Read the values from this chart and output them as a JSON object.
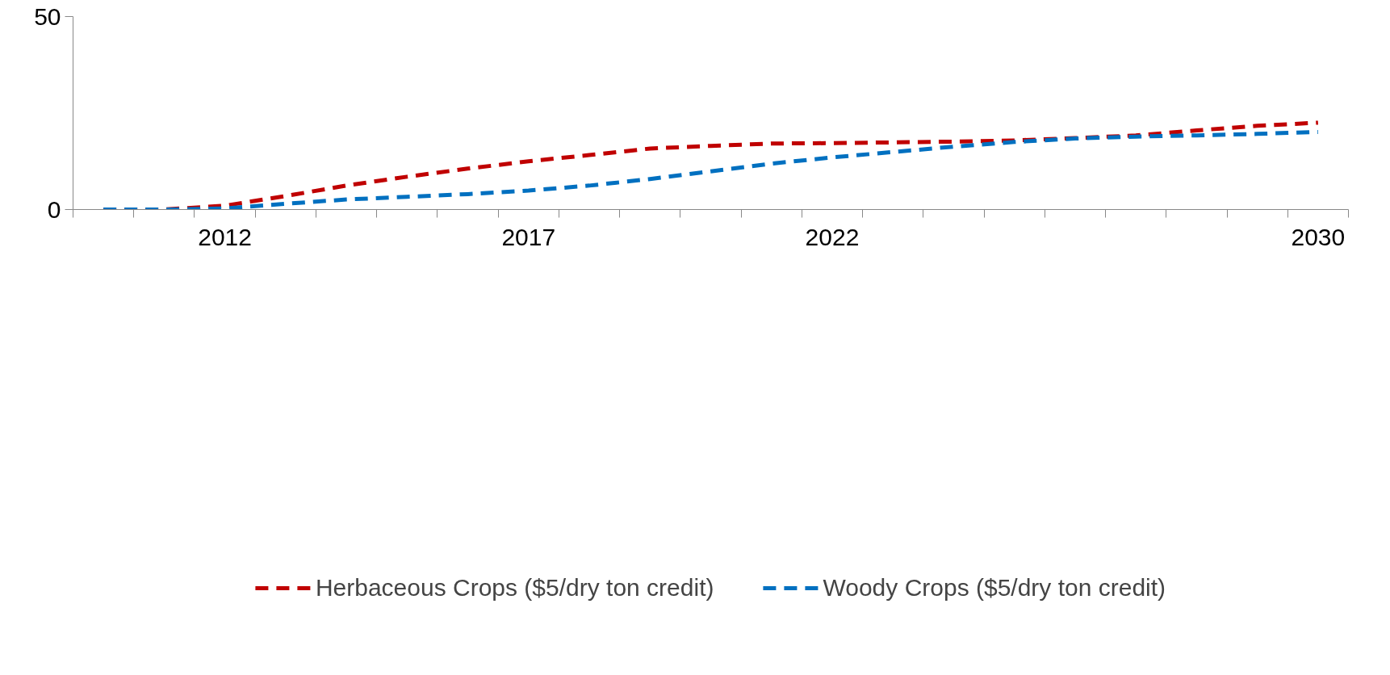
{
  "chart_data": {
    "type": "line",
    "categories": [
      null,
      null,
      "2012",
      null,
      null,
      null,
      null,
      "2017",
      null,
      null,
      null,
      null,
      "2022",
      null,
      null,
      null,
      null,
      null,
      null,
      null,
      "2030"
    ],
    "series": [
      {
        "name": "Herbaceous Crops ($5/dry ton credit)",
        "color": "#c00000",
        "values": [
          0,
          0,
          1.0,
          3.5,
          6.2,
          8.5,
          10.6,
          12.5,
          14.1,
          15.8,
          16.5,
          17.1,
          17.2,
          17.4,
          17.6,
          17.9,
          18.5,
          19.2,
          20.5,
          21.7,
          22.5
        ]
      },
      {
        "name": "Woody Crops ($5/dry ton credit)",
        "color": "#0070c0",
        "values": [
          0,
          0,
          0.3,
          1.5,
          2.6,
          3.3,
          4.0,
          4.9,
          6.2,
          7.9,
          9.9,
          11.9,
          13.5,
          14.9,
          16.3,
          17.5,
          18.4,
          18.9,
          19.2,
          19.6,
          20.1
        ]
      }
    ],
    "ylim": [
      0,
      50
    ],
    "yticks": [
      0,
      50
    ],
    "grid": false,
    "legend": "bottom",
    "line_style": "dashed"
  }
}
